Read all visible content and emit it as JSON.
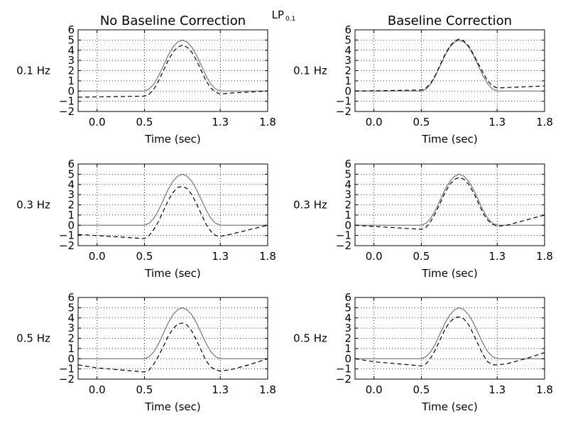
{
  "figure": {
    "suptitle_main": "LP",
    "suptitle_sub": "0.1",
    "columns": [
      "No Baseline Correction",
      "Baseline Correction"
    ]
  },
  "chart_data": [
    {
      "type": "line",
      "column": 0,
      "row": 0,
      "title": "No Baseline Correction",
      "ylabel": "0.1 Hz",
      "xlabel": "Time (sec)",
      "xlim": [
        -0.2,
        1.8
      ],
      "ylim": [
        -2,
        6
      ],
      "xticks": [
        0.0,
        0.5,
        1.3,
        1.8
      ],
      "xtick_labels": [
        "0.0",
        "0.5",
        "1.3",
        "1.8"
      ],
      "yticks": [
        -2,
        -1,
        0,
        1,
        2,
        3,
        4,
        5,
        6
      ],
      "grid": true,
      "series": [
        {
          "style": "solid",
          "color": "#808080",
          "x": [
            -0.2,
            0.5,
            0.55,
            0.6,
            0.65,
            0.7,
            0.75,
            0.8,
            0.85,
            0.9,
            0.95,
            1.0,
            1.05,
            1.1,
            1.15,
            1.2,
            1.25,
            1.3,
            1.8
          ],
          "y": [
            0,
            0,
            0.2,
            0.7,
            1.5,
            2.5,
            3.5,
            4.3,
            4.8,
            5.0,
            4.8,
            4.3,
            3.5,
            2.5,
            1.5,
            0.7,
            0.2,
            0,
            0
          ]
        },
        {
          "style": "dashed",
          "color": "#000000",
          "x": [
            -0.2,
            0.5,
            0.55,
            0.6,
            0.65,
            0.7,
            0.75,
            0.8,
            0.85,
            0.9,
            0.95,
            1.0,
            1.05,
            1.1,
            1.15,
            1.2,
            1.25,
            1.3,
            1.4,
            1.8
          ],
          "y": [
            -0.6,
            -0.5,
            -0.3,
            0.2,
            1.0,
            2.0,
            3.0,
            3.8,
            4.3,
            4.5,
            4.3,
            3.8,
            3.0,
            2.0,
            1.0,
            0.3,
            -0.1,
            -0.3,
            -0.2,
            0
          ]
        }
      ]
    },
    {
      "type": "line",
      "column": 1,
      "row": 0,
      "title": "Baseline Correction",
      "ylabel": "0.1 Hz",
      "xlabel": "Time (sec)",
      "xlim": [
        -0.2,
        1.8
      ],
      "ylim": [
        -2,
        6
      ],
      "xticks": [
        0.0,
        0.5,
        1.3,
        1.8
      ],
      "xtick_labels": [
        "0.0",
        "0.5",
        "1.3",
        "1.8"
      ],
      "yticks": [
        -2,
        -1,
        0,
        1,
        2,
        3,
        4,
        5,
        6
      ],
      "grid": true,
      "series": [
        {
          "style": "solid",
          "color": "#808080",
          "x": [
            -0.2,
            0.5,
            0.55,
            0.6,
            0.65,
            0.7,
            0.75,
            0.8,
            0.85,
            0.9,
            0.95,
            1.0,
            1.05,
            1.1,
            1.15,
            1.2,
            1.25,
            1.3,
            1.8
          ],
          "y": [
            0,
            0,
            0.2,
            0.7,
            1.5,
            2.5,
            3.5,
            4.3,
            4.8,
            5.0,
            4.8,
            4.3,
            3.5,
            2.5,
            1.5,
            0.7,
            0.2,
            0,
            0
          ]
        },
        {
          "style": "dashed",
          "color": "#000000",
          "x": [
            -0.2,
            0.5,
            0.55,
            0.6,
            0.65,
            0.7,
            0.75,
            0.8,
            0.85,
            0.9,
            0.95,
            1.0,
            1.05,
            1.1,
            1.15,
            1.2,
            1.25,
            1.3,
            1.8
          ],
          "y": [
            0,
            0.1,
            0.3,
            0.8,
            1.6,
            2.6,
            3.6,
            4.4,
            4.9,
            5.1,
            4.9,
            4.4,
            3.6,
            2.7,
            1.8,
            1.0,
            0.5,
            0.3,
            0.5
          ]
        }
      ]
    },
    {
      "type": "line",
      "column": 0,
      "row": 1,
      "title": "",
      "ylabel": "0.3 Hz",
      "xlabel": "Time (sec)",
      "xlim": [
        -0.2,
        1.8
      ],
      "ylim": [
        -2,
        6
      ],
      "xticks": [
        0.0,
        0.5,
        1.3,
        1.8
      ],
      "xtick_labels": [
        "0.0",
        "0.5",
        "1.3",
        "1.8"
      ],
      "yticks": [
        -2,
        -1,
        0,
        1,
        2,
        3,
        4,
        5,
        6
      ],
      "grid": true,
      "series": [
        {
          "style": "solid",
          "color": "#808080",
          "x": [
            -0.2,
            0.5,
            0.55,
            0.6,
            0.65,
            0.7,
            0.75,
            0.8,
            0.85,
            0.9,
            0.95,
            1.0,
            1.05,
            1.1,
            1.15,
            1.2,
            1.25,
            1.3,
            1.8
          ],
          "y": [
            0,
            0,
            0.2,
            0.7,
            1.5,
            2.5,
            3.5,
            4.3,
            4.8,
            5.0,
            4.8,
            4.3,
            3.5,
            2.5,
            1.5,
            0.7,
            0.2,
            0,
            0
          ]
        },
        {
          "style": "dashed",
          "color": "#000000",
          "x": [
            -0.2,
            0.5,
            0.55,
            0.6,
            0.65,
            0.7,
            0.75,
            0.8,
            0.85,
            0.9,
            0.95,
            1.0,
            1.05,
            1.1,
            1.15,
            1.2,
            1.25,
            1.3,
            1.4,
            1.8
          ],
          "y": [
            -0.9,
            -1.3,
            -1.0,
            -0.4,
            0.4,
            1.4,
            2.4,
            3.2,
            3.7,
            3.8,
            3.6,
            3.0,
            2.1,
            1.1,
            0.1,
            -0.6,
            -1.0,
            -1.1,
            -0.9,
            0
          ]
        }
      ]
    },
    {
      "type": "line",
      "column": 1,
      "row": 1,
      "title": "",
      "ylabel": "0.3 Hz",
      "xlabel": "Time (sec)",
      "xlim": [
        -0.2,
        1.8
      ],
      "ylim": [
        -2,
        6
      ],
      "xticks": [
        0.0,
        0.5,
        1.3,
        1.8
      ],
      "xtick_labels": [
        "0.0",
        "0.5",
        "1.3",
        "1.8"
      ],
      "yticks": [
        -2,
        -1,
        0,
        1,
        2,
        3,
        4,
        5,
        6
      ],
      "grid": true,
      "series": [
        {
          "style": "solid",
          "color": "#808080",
          "x": [
            -0.2,
            0.5,
            0.55,
            0.6,
            0.65,
            0.7,
            0.75,
            0.8,
            0.85,
            0.9,
            0.95,
            1.0,
            1.05,
            1.1,
            1.15,
            1.2,
            1.25,
            1.3,
            1.8
          ],
          "y": [
            0,
            0,
            0.2,
            0.7,
            1.5,
            2.5,
            3.5,
            4.3,
            4.8,
            5.0,
            4.8,
            4.3,
            3.5,
            2.5,
            1.5,
            0.7,
            0.2,
            0,
            0
          ]
        },
        {
          "style": "dashed",
          "color": "#000000",
          "x": [
            -0.2,
            0.5,
            0.55,
            0.6,
            0.65,
            0.7,
            0.75,
            0.8,
            0.85,
            0.9,
            0.95,
            1.0,
            1.05,
            1.1,
            1.15,
            1.2,
            1.25,
            1.3,
            1.4,
            1.8
          ],
          "y": [
            0,
            -0.4,
            -0.2,
            0.4,
            1.2,
            2.2,
            3.2,
            4.0,
            4.5,
            4.7,
            4.5,
            4.0,
            3.2,
            2.2,
            1.2,
            0.5,
            0.1,
            -0.1,
            0,
            1.0
          ]
        }
      ]
    },
    {
      "type": "line",
      "column": 0,
      "row": 2,
      "title": "",
      "ylabel": "0.5 Hz",
      "xlabel": "Time (sec)",
      "xlim": [
        -0.2,
        1.8
      ],
      "ylim": [
        -2,
        6
      ],
      "xticks": [
        0.0,
        0.5,
        1.3,
        1.8
      ],
      "xtick_labels": [
        "0.0",
        "0.5",
        "1.3",
        "1.8"
      ],
      "yticks": [
        -2,
        -1,
        0,
        1,
        2,
        3,
        4,
        5,
        6
      ],
      "grid": true,
      "series": [
        {
          "style": "solid",
          "color": "#808080",
          "x": [
            -0.2,
            0.5,
            0.55,
            0.6,
            0.65,
            0.7,
            0.75,
            0.8,
            0.85,
            0.9,
            0.95,
            1.0,
            1.05,
            1.1,
            1.15,
            1.2,
            1.25,
            1.3,
            1.8
          ],
          "y": [
            0,
            0,
            0.2,
            0.7,
            1.5,
            2.5,
            3.5,
            4.3,
            4.8,
            5.0,
            4.8,
            4.3,
            3.5,
            2.5,
            1.5,
            0.7,
            0.2,
            0,
            0
          ]
        },
        {
          "style": "dashed",
          "color": "#000000",
          "x": [
            -0.2,
            0.0,
            0.5,
            0.55,
            0.6,
            0.65,
            0.7,
            0.75,
            0.8,
            0.85,
            0.9,
            0.95,
            1.0,
            1.05,
            1.1,
            1.15,
            1.2,
            1.25,
            1.3,
            1.4,
            1.6,
            1.8
          ],
          "y": [
            -0.6,
            -0.9,
            -1.3,
            -1.1,
            -0.5,
            0.3,
            1.2,
            2.2,
            2.9,
            3.4,
            3.5,
            3.3,
            2.7,
            1.8,
            0.8,
            -0.2,
            -0.8,
            -1.1,
            -1.2,
            -1.1,
            -0.6,
            0
          ]
        }
      ]
    },
    {
      "type": "line",
      "column": 1,
      "row": 2,
      "title": "",
      "ylabel": "0.5 Hz",
      "xlabel": "Time (sec)",
      "xlim": [
        -0.2,
        1.8
      ],
      "ylim": [
        -2,
        6
      ],
      "xticks": [
        0.0,
        0.5,
        1.3,
        1.8
      ],
      "xtick_labels": [
        "0.0",
        "0.5",
        "1.3",
        "1.8"
      ],
      "yticks": [
        -2,
        -1,
        0,
        1,
        2,
        3,
        4,
        5,
        6
      ],
      "grid": true,
      "series": [
        {
          "style": "solid",
          "color": "#808080",
          "x": [
            -0.2,
            0.5,
            0.55,
            0.6,
            0.65,
            0.7,
            0.75,
            0.8,
            0.85,
            0.9,
            0.95,
            1.0,
            1.05,
            1.1,
            1.15,
            1.2,
            1.25,
            1.3,
            1.8
          ],
          "y": [
            0,
            0,
            0.2,
            0.7,
            1.5,
            2.5,
            3.5,
            4.3,
            4.8,
            5.0,
            4.8,
            4.3,
            3.5,
            2.5,
            1.5,
            0.7,
            0.2,
            0,
            0
          ]
        },
        {
          "style": "dashed",
          "color": "#000000",
          "x": [
            -0.2,
            0.0,
            0.5,
            0.55,
            0.6,
            0.65,
            0.7,
            0.75,
            0.8,
            0.85,
            0.9,
            0.95,
            1.0,
            1.05,
            1.1,
            1.15,
            1.2,
            1.25,
            1.3,
            1.4,
            1.6,
            1.8
          ],
          "y": [
            0,
            -0.3,
            -0.7,
            -0.5,
            0.1,
            0.9,
            1.9,
            2.9,
            3.6,
            4.0,
            4.1,
            3.9,
            3.3,
            2.4,
            1.4,
            0.4,
            -0.3,
            -0.6,
            -0.6,
            -0.5,
            0,
            0.6
          ]
        }
      ]
    }
  ]
}
